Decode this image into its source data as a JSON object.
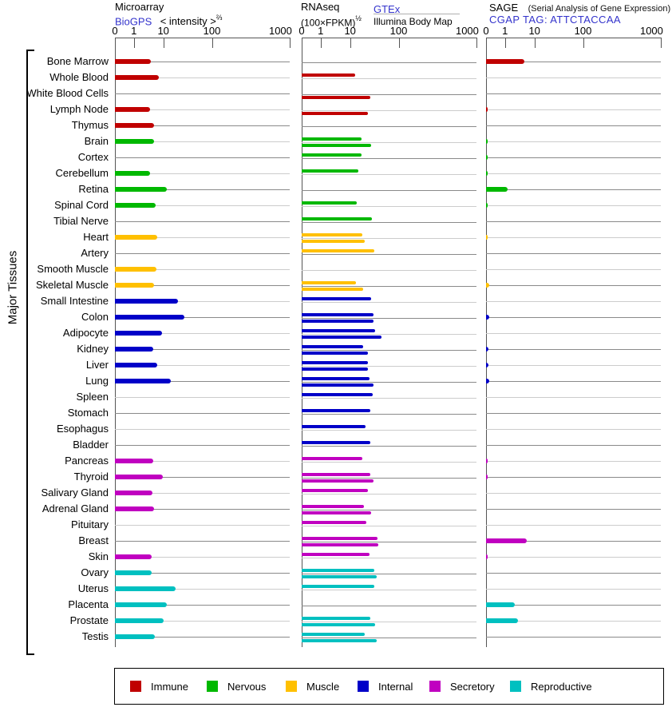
{
  "left_label": "Major Tissues",
  "header": {
    "panels": [
      {
        "title": "Microarray",
        "link": "BioGPS",
        "subtitle": "< intensity >",
        "exponent": "⅔"
      },
      {
        "title": "RNAseq",
        "subtitle": "(100×FPKM)",
        "exponent": "½",
        "link": "GTEx",
        "secondary_source": "Illumina Body Map"
      },
      {
        "title": "SAGE",
        "note": "(Serial Analysis of Gene Expression)",
        "link": "CGAP TAG: ATTCTACCAA"
      }
    ]
  },
  "legend": [
    {
      "label": "Immune",
      "color": "#c00000"
    },
    {
      "label": "Nervous",
      "color": "#00b800"
    },
    {
      "label": "Muscle",
      "color": "#ffc000"
    },
    {
      "label": "Internal",
      "color": "#0000c8"
    },
    {
      "label": "Secretory",
      "color": "#c000c0"
    },
    {
      "label": "Reproductive",
      "color": "#00c0c0"
    }
  ],
  "chart_data": {
    "type": "bar",
    "orientation": "horizontal",
    "x_scale": "log-like; anchors 0,1,10,100,1000 placed at axis fractions 0,0.108,0.277,0.555,1",
    "xlim": [
      0,
      1000
    ],
    "tick_labels": [
      "0",
      "1",
      "10",
      "100",
      "1000"
    ],
    "grid": "one horizontal baseline per tissue row, alternating dark/light gray",
    "legend_position": "bottom",
    "categories": [
      "Bone Marrow",
      "Whole Blood",
      "White Blood Cells",
      "Lymph Node",
      "Thymus",
      "Brain",
      "Cortex",
      "Cerebellum",
      "Retina",
      "Spinal Cord",
      "Tibial Nerve",
      "Heart",
      "Artery",
      "Smooth Muscle",
      "Skeletal Muscle",
      "Small Intestine",
      "Colon",
      "Adipocyte",
      "Kidney",
      "Liver",
      "Lung",
      "Spleen",
      "Stomach",
      "Esophagus",
      "Bladder",
      "Pancreas",
      "Thyroid",
      "Salivary Gland",
      "Adrenal Gland",
      "Pituitary",
      "Breast",
      "Skin",
      "Ovary",
      "Uterus",
      "Placenta",
      "Prostate",
      "Testis"
    ],
    "category_groups": [
      "Immune",
      "Immune",
      "Immune",
      "Immune",
      "Immune",
      "Nervous",
      "Nervous",
      "Nervous",
      "Nervous",
      "Nervous",
      "Nervous",
      "Muscle",
      "Muscle",
      "Muscle",
      "Muscle",
      "Internal",
      "Internal",
      "Internal",
      "Internal",
      "Internal",
      "Internal",
      "Internal",
      "Internal",
      "Internal",
      "Internal",
      "Secretory",
      "Secretory",
      "Secretory",
      "Secretory",
      "Secretory",
      "Secretory",
      "Secretory",
      "Reproductive",
      "Reproductive",
      "Reproductive",
      "Reproductive",
      "Reproductive"
    ],
    "panels": [
      {
        "name": "Microarray",
        "series": [
          {
            "name": "BioGPS intensity^(2/3)",
            "values": [
              3.7,
              6.9,
              null,
              3.5,
              4.7,
              4.7,
              null,
              3.5,
              11.6,
              5.4,
              null,
              6.1,
              null,
              5.7,
              4.7,
              19.7,
              26.7,
              8.8,
              4.5,
              6.1,
              14,
              null,
              null,
              null,
              null,
              4.5,
              9.4,
              4.2,
              4.7,
              null,
              null,
              3.9,
              3.9,
              17.6,
              11.6,
              10,
              5
            ]
          }
        ]
      },
      {
        "name": "RNAseq",
        "series": [
          {
            "name": "GTEx",
            "values": [
              null,
              12.5,
              null,
              null,
              null,
              17,
              17,
              15,
              null,
              13.5,
              28,
              17.5,
              31.6,
              null,
              13.3,
              27,
              30.5,
              32.4,
              18.6,
              23.1,
              24.6,
              29.4,
              25.6,
              21,
              25.6,
              17.6,
              26.3,
              23.2,
              19.5,
              21.8,
              36.7,
              25.3,
              31.6,
              31.6,
              null,
              25.6,
              20.2
            ]
          },
          {
            "name": "Illumina Body Map",
            "values": [
              null,
              null,
              26,
              23,
              null,
              27,
              null,
              null,
              null,
              null,
              null,
              20,
              null,
              null,
              18.3,
              null,
              30.7,
              44.2,
              22.9,
              22.9,
              30.5,
              null,
              null,
              null,
              null,
              null,
              30.8,
              null,
              27.1,
              null,
              38.2,
              null,
              35.8,
              null,
              null,
              32.7,
              35
            ]
          }
        ]
      },
      {
        "name": "SAGE",
        "series": [
          {
            "name": "CGAP TAG: ATTCTACCAA",
            "values": [
              4.4,
              null,
              null,
              0.1,
              null,
              0.1,
              0.1,
              0.1,
              1.2,
              0.1,
              null,
              0.1,
              null,
              null,
              0.15,
              null,
              0.17,
              null,
              0.13,
              0.13,
              0.17,
              null,
              null,
              null,
              null,
              0.08,
              0.08,
              null,
              null,
              null,
              5.6,
              0.08,
              null,
              null,
              2.2,
              2.7,
              null
            ]
          }
        ]
      }
    ]
  }
}
